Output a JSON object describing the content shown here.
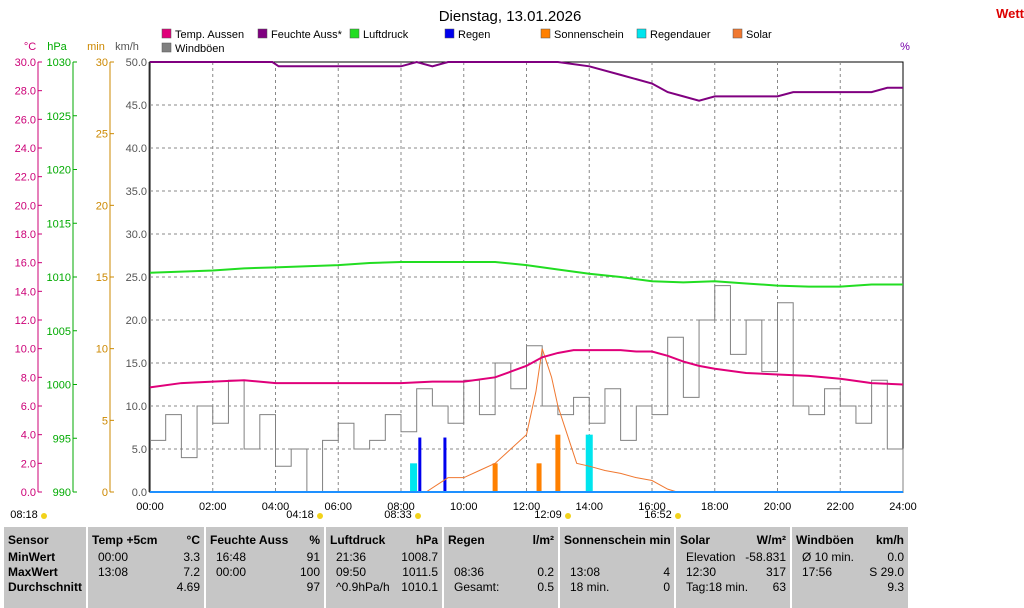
{
  "title": "Dienstag, 13.01.2026",
  "corner_text": "Wett",
  "axes": {
    "units": [
      {
        "label": "°C",
        "color": "#cc0077"
      },
      {
        "label": "hPa",
        "color": "#00aa00"
      },
      {
        "label": "min",
        "color": "#cc8800"
      },
      {
        "label": "km/h",
        "color": "#555555"
      },
      {
        "label": "%",
        "color": "#7700aa"
      }
    ],
    "temp_ticks": [
      "30.0",
      "28.0",
      "26.0",
      "24.0",
      "22.0",
      "20.0",
      "18.0",
      "16.0",
      "14.0",
      "12.0",
      "10.0",
      "8.0",
      "6.0",
      "4.0",
      "2.0",
      "0.0"
    ],
    "hpa_ticks": [
      "1030",
      "1025",
      "1020",
      "1015",
      "1010",
      "1005",
      "1000",
      "995",
      "990"
    ],
    "min_ticks": [
      "30",
      "25",
      "20",
      "15",
      "10",
      "5",
      "0"
    ],
    "kmh_ticks": [
      "50.0",
      "45.0",
      "40.0",
      "35.0",
      "30.0",
      "25.0",
      "20.0",
      "15.0",
      "10.0",
      "5.0",
      "0.0"
    ],
    "time_ticks": [
      "00:00",
      "02:00",
      "04:00",
      "06:00",
      "08:00",
      "10:00",
      "12:00",
      "14:00",
      "16:00",
      "18:00",
      "20:00",
      "22:00",
      "24:00"
    ]
  },
  "legend": [
    {
      "label": "Temp. Aussen",
      "color": "#e0007a"
    },
    {
      "label": "Feuchte Auss*",
      "color": "#800080"
    },
    {
      "label": "Luftdruck",
      "color": "#22dd22"
    },
    {
      "label": "Regen",
      "color": "#0000ee"
    },
    {
      "label": "Sonnenschein",
      "color": "#ff8000"
    },
    {
      "label": "Regendauer",
      "color": "#00e5ee"
    },
    {
      "label": "Solar",
      "color": "#f07830"
    },
    {
      "label": "Windböen",
      "color": "#808080"
    }
  ],
  "sun_markers": [
    {
      "time": "08:18",
      "label": "08:18"
    },
    {
      "time": "08:33",
      "label": "08:33"
    },
    {
      "time": "04:18",
      "label": "04:18"
    },
    {
      "time": "12:09",
      "label": "12:09"
    },
    {
      "time": "16:52",
      "label": "16:52"
    }
  ],
  "chart_data": {
    "type": "line",
    "title": "Dienstag, 13.01.2026",
    "x_unit": "time",
    "x_range": [
      "00:00",
      "24:00"
    ],
    "grid": true,
    "series": [
      {
        "name": "Temp. Aussen",
        "unit": "°C",
        "axis": [
          0,
          30
        ],
        "x": [
          0,
          1,
          2,
          3,
          4,
          5,
          6,
          7,
          8,
          9,
          10,
          11,
          11.5,
          12,
          12.5,
          13,
          13.5,
          14,
          14.5,
          15,
          15.5,
          16,
          16.5,
          17,
          17.5,
          18,
          19,
          20,
          21,
          22,
          23,
          24
        ],
        "y": [
          7.3,
          7.6,
          7.7,
          7.8,
          7.6,
          7.6,
          7.6,
          7.6,
          7.6,
          7.7,
          7.7,
          8.0,
          8.4,
          8.8,
          9.4,
          9.7,
          9.9,
          9.9,
          9.9,
          9.9,
          9.8,
          9.8,
          9.5,
          9.1,
          8.8,
          8.6,
          8.3,
          8.2,
          8.1,
          7.9,
          7.6,
          7.5
        ]
      },
      {
        "name": "Feuchte Auss*",
        "unit": "%",
        "axis": [
          0,
          100
        ],
        "x": [
          0,
          3.9,
          4.1,
          8.0,
          8.5,
          9.0,
          9.5,
          10.0,
          11.5,
          12.0,
          13.0,
          14.0,
          15.0,
          16.0,
          16.5,
          17.0,
          17.5,
          18.0,
          19.0,
          20.0,
          20.5,
          21.0,
          22.0,
          23.0,
          23.5,
          24.0
        ],
        "y": [
          100,
          100,
          99,
          99,
          100,
          99,
          100,
          100,
          100,
          100,
          100,
          99,
          97,
          95,
          93,
          92,
          91,
          92,
          92,
          92,
          93,
          93,
          93,
          93,
          94,
          94
        ]
      },
      {
        "name": "Luftdruck",
        "unit": "hPa",
        "axis": [
          990,
          1030
        ],
        "x": [
          0,
          1,
          2,
          3,
          4,
          5,
          6,
          7,
          8,
          9,
          10,
          11,
          12,
          13,
          14,
          15,
          16,
          17,
          18,
          19,
          20,
          21,
          22,
          23,
          24
        ],
        "y": [
          1010.4,
          1010.5,
          1010.6,
          1010.8,
          1010.9,
          1011.0,
          1011.1,
          1011.3,
          1011.4,
          1011.4,
          1011.4,
          1011.4,
          1011.1,
          1010.7,
          1010.3,
          1010.0,
          1009.6,
          1009.5,
          1009.6,
          1009.4,
          1009.2,
          1009.1,
          1009.1,
          1009.3,
          1009.3
        ]
      },
      {
        "name": "Windböen",
        "unit": "km/h",
        "axis": [
          0,
          50
        ],
        "x": [
          0,
          0.5,
          1,
          1.5,
          2,
          2.5,
          3,
          3.5,
          4,
          4.5,
          5,
          5.5,
          6,
          6.5,
          7,
          7.5,
          8,
          8.5,
          9,
          9.5,
          10,
          10.5,
          11,
          11.5,
          12,
          12.5,
          13,
          13.5,
          14,
          14.5,
          15,
          15.5,
          16,
          16.5,
          17,
          17.5,
          18,
          18.5,
          19,
          19.5,
          20,
          20.5,
          21,
          21.5,
          22,
          22.5,
          23,
          23.5,
          24
        ],
        "y": [
          6,
          9,
          4,
          10,
          8,
          13,
          5,
          9,
          3,
          5,
          0,
          6,
          8,
          5,
          6,
          9,
          7,
          12,
          10,
          8,
          13,
          9,
          15,
          12,
          17,
          10,
          9,
          11,
          8,
          12,
          6,
          10,
          9,
          18,
          11,
          20,
          24,
          16,
          20,
          14,
          22,
          10,
          9,
          12,
          10,
          8,
          13,
          5,
          0
        ]
      },
      {
        "name": "Solar",
        "unit": "min",
        "axis": [
          0,
          30
        ],
        "x": [
          8.8,
          9.5,
          10,
          10.5,
          11,
          11.5,
          12,
          12.3,
          12.5,
          12.8,
          13,
          13.3,
          13.6,
          14,
          14.5,
          15,
          15.5,
          16,
          16.5,
          16.8
        ],
        "y": [
          0,
          1,
          1,
          1.5,
          2,
          3,
          4,
          7,
          10,
          8,
          6,
          4,
          2,
          1.8,
          1.5,
          1.3,
          1,
          0.8,
          0.2,
          0
        ]
      }
    ],
    "bars": [
      {
        "name": "Regen",
        "x": [
          8.6,
          9.4
        ],
        "y": [
          3.8,
          3.8
        ]
      },
      {
        "name": "Sonnenschein",
        "x": [
          11.0,
          12.4,
          13.0
        ],
        "y": [
          2.0,
          2.0,
          4.0
        ]
      },
      {
        "name": "Regendauer",
        "x": [
          8.4,
          14.0
        ],
        "y": [
          2.0,
          4.0
        ]
      }
    ]
  },
  "table": {
    "columns": [
      {
        "header": "Sensor",
        "unit": "",
        "rows": [
          [
            "MinWert",
            ""
          ],
          [
            "MaxWert",
            ""
          ],
          [
            "Durchschnitt",
            ""
          ]
        ]
      },
      {
        "header": "Temp +5cm",
        "unit": "°C",
        "rows": [
          [
            "00:00",
            "3.3"
          ],
          [
            "13:08",
            "7.2"
          ],
          [
            "",
            "4.69"
          ]
        ]
      },
      {
        "header": "Feuchte Auss",
        "unit": "%",
        "rows": [
          [
            "16:48",
            "91"
          ],
          [
            "00:00",
            "100"
          ],
          [
            "",
            "97"
          ]
        ]
      },
      {
        "header": "Luftdruck",
        "unit": "hPa",
        "rows": [
          [
            "21:36",
            "1008.7"
          ],
          [
            "09:50",
            "1011.5"
          ],
          [
            "^0.9hPa/h",
            "1010.1"
          ]
        ]
      },
      {
        "header": "Regen",
        "unit": "l/m²",
        "rows": [
          [
            "",
            ""
          ],
          [
            "08:36",
            "0.2"
          ],
          [
            "Gesamt:",
            "0.5"
          ]
        ]
      },
      {
        "header": "Sonnenschein min",
        "unit": "",
        "rows": [
          [
            "",
            ""
          ],
          [
            "13:08",
            "4"
          ],
          [
            "18 min.",
            "0"
          ]
        ]
      },
      {
        "header": "Solar",
        "unit": "W/m²",
        "rows": [
          [
            "Elevation",
            "-58.831"
          ],
          [
            "12:30",
            "317"
          ],
          [
            "Tag:18 min.",
            "63"
          ]
        ]
      },
      {
        "header": "Windböen",
        "unit": "km/h",
        "rows": [
          [
            "Ø 10 min.",
            "0.0"
          ],
          [
            "17:56",
            "S 29.0"
          ],
          [
            "",
            "9.3"
          ]
        ]
      }
    ]
  }
}
